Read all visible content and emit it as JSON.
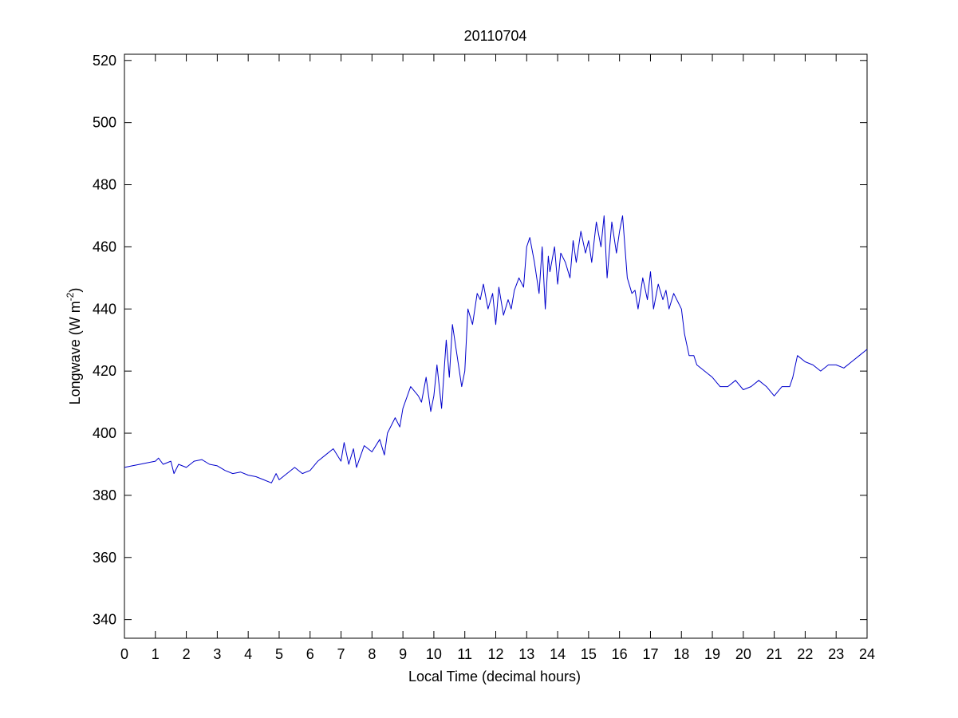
{
  "chart_data": {
    "type": "line",
    "title": "20110704",
    "xlabel": "Local Time (decimal hours)",
    "ylabel": "Longwave (W m",
    "ylabel_sup": "-2",
    "ylabel_suffix": ")",
    "xlim": [
      0,
      24
    ],
    "ylim": [
      334,
      522
    ],
    "xticks": [
      0,
      1,
      2,
      3,
      4,
      5,
      6,
      7,
      8,
      9,
      10,
      11,
      12,
      13,
      14,
      15,
      16,
      17,
      18,
      19,
      20,
      21,
      22,
      23,
      24
    ],
    "yticks": [
      340,
      360,
      380,
      400,
      420,
      440,
      460,
      480,
      500,
      520
    ],
    "grid": false,
    "line_color": "#0000cc",
    "series": [
      {
        "x": [
          0,
          0.25,
          0.5,
          0.75,
          1.0,
          1.1,
          1.25,
          1.5,
          1.6,
          1.75,
          2.0,
          2.25,
          2.5,
          2.75,
          3.0,
          3.25,
          3.5,
          3.75,
          4.0,
          4.25,
          4.5,
          4.75,
          4.9,
          5.0,
          5.25,
          5.5,
          5.75,
          6.0,
          6.25,
          6.5,
          6.75,
          7.0,
          7.1,
          7.25,
          7.4,
          7.5,
          7.75,
          8.0,
          8.25,
          8.4,
          8.5,
          8.75,
          8.9,
          9.0,
          9.25,
          9.5,
          9.6,
          9.75,
          9.9,
          10.0,
          10.1,
          10.25,
          10.4,
          10.5,
          10.6,
          10.75,
          10.9,
          11.0,
          11.1,
          11.25,
          11.4,
          11.5,
          11.6,
          11.75,
          11.9,
          12.0,
          12.1,
          12.25,
          12.4,
          12.5,
          12.6,
          12.75,
          12.9,
          13.0,
          13.1,
          13.25,
          13.4,
          13.5,
          13.6,
          13.7,
          13.75,
          13.9,
          14.0,
          14.1,
          14.25,
          14.4,
          14.5,
          14.6,
          14.75,
          14.9,
          15.0,
          15.1,
          15.25,
          15.4,
          15.5,
          15.6,
          15.75,
          15.9,
          16.0,
          16.1,
          16.25,
          16.4,
          16.5,
          16.6,
          16.75,
          16.9,
          17.0,
          17.1,
          17.25,
          17.4,
          17.5,
          17.6,
          17.75,
          17.9,
          18.0,
          18.1,
          18.25,
          18.4,
          18.5,
          18.75,
          19.0,
          19.25,
          19.5,
          19.75,
          20.0,
          20.25,
          20.5,
          20.75,
          21.0,
          21.25,
          21.5,
          21.6,
          21.75,
          22.0,
          22.25,
          22.5,
          22.75,
          23.0,
          23.25,
          23.5,
          23.75,
          24.0
        ],
        "y": [
          389,
          389.5,
          390,
          390.5,
          391,
          392,
          390,
          391,
          387,
          390,
          389,
          391,
          391.5,
          390,
          389.5,
          388,
          387,
          387.5,
          386.5,
          386,
          385,
          384,
          387,
          385,
          387,
          389,
          387,
          388,
          391,
          393,
          395,
          391,
          397,
          390,
          395,
          389,
          396,
          394,
          398,
          393,
          400,
          405,
          402,
          408,
          415,
          412,
          410,
          418,
          407,
          412,
          422,
          408,
          430,
          418,
          435,
          425,
          415,
          420,
          440,
          435,
          445,
          443,
          448,
          440,
          445,
          435,
          447,
          438,
          443,
          440,
          446,
          450,
          447,
          460,
          463,
          455,
          445,
          460,
          440,
          457,
          452,
          460,
          448,
          458,
          455,
          450,
          462,
          455,
          465,
          458,
          462,
          455,
          468,
          460,
          470,
          450,
          468,
          458,
          465,
          470,
          450,
          445,
          446,
          440,
          450,
          443,
          452,
          440,
          448,
          443,
          446,
          440,
          445,
          442,
          440,
          432,
          425,
          425,
          422,
          420,
          418,
          415,
          415,
          417,
          414,
          415,
          417,
          415,
          412,
          415,
          415,
          418,
          425,
          423,
          422,
          420,
          422,
          422,
          421,
          423,
          425,
          427
        ]
      }
    ]
  }
}
